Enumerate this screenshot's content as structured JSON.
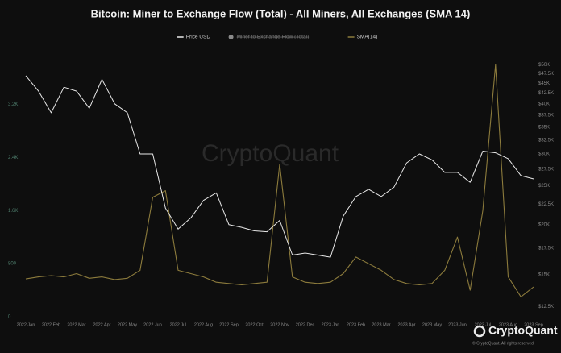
{
  "chart_data": {
    "type": "line",
    "title": "Bitcoin: Miner to Exchange Flow (Total) - All Miners, All Exchanges (SMA 14)",
    "categories": [
      "2022 Jan",
      null,
      "2022 Feb",
      null,
      "2022 Mar",
      null,
      "2022 Apr",
      null,
      "2022 May",
      null,
      "2022 Jun",
      null,
      "2022 Jul",
      null,
      "2022 Aug",
      null,
      "2022 Sep",
      null,
      "2022 Oct",
      null,
      "2022 Nov",
      null,
      "2022 Dec",
      null,
      "2023 Jan",
      null,
      "2023 Feb",
      null,
      "2023 Mar",
      null,
      "2023 Apr",
      null,
      "2023 May",
      null,
      "2023 Jun",
      null,
      "2023 Jul",
      null,
      "2023 Aug",
      null,
      "2023 Sep"
    ],
    "series": [
      {
        "name": "Price USD",
        "color": "#e8e8e8",
        "axis": "y2",
        "values": [
          47000,
          43000,
          38000,
          44000,
          43000,
          39000,
          46000,
          40000,
          38000,
          30000,
          30000,
          22000,
          19500,
          20800,
          23000,
          24000,
          20000,
          19700,
          19300,
          19200,
          20500,
          16800,
          17000,
          16800,
          16600,
          21000,
          23500,
          24500,
          23500,
          24800,
          28500,
          30000,
          29000,
          27000,
          27000,
          25500,
          30500,
          30200,
          29200,
          26500,
          26000
        ]
      },
      {
        "name": "Miner to Exchange Flow (Total)",
        "color": "#8a8a8a",
        "hidden": true
      },
      {
        "name": "SMA(14)",
        "color": "#8c7b3c",
        "values": [
          570,
          600,
          620,
          600,
          650,
          580,
          600,
          560,
          580,
          700,
          1800,
          1900,
          700,
          650,
          600,
          520,
          500,
          480,
          500,
          520,
          2300,
          600,
          520,
          500,
          520,
          650,
          900,
          800,
          700,
          560,
          500,
          480,
          500,
          700,
          1200,
          400,
          1600,
          3800,
          600,
          300,
          450
        ]
      }
    ],
    "ylim": [
      0,
      3900
    ],
    "yticks": [
      0,
      800,
      {
        "value": 1600,
        "label": "1.6K"
      },
      {
        "value": 2400,
        "label": "2.4K"
      },
      {
        "value": 3200,
        "label": "3.2K"
      }
    ],
    "y2lim": [
      11800,
      52000
    ],
    "y2log": true,
    "y2ticks": [
      {
        "value": 12500,
        "label": "$12.5K"
      },
      {
        "value": 15000,
        "label": "$15K"
      },
      {
        "value": 17500,
        "label": "$17.5K"
      },
      {
        "value": 20000,
        "label": "$20K"
      },
      {
        "value": 22500,
        "label": "$22.5K"
      },
      {
        "value": 25000,
        "label": "$25K"
      },
      {
        "value": 27500,
        "label": "$27.5K"
      },
      {
        "value": 30000,
        "label": "$30K"
      },
      {
        "value": 32500,
        "label": "$32.5K"
      },
      {
        "value": 35000,
        "label": "$35K"
      },
      {
        "value": 37500,
        "label": "$37.5K"
      },
      {
        "value": 40000,
        "label": "$40K"
      },
      {
        "value": 42500,
        "label": "$42.5K"
      },
      {
        "value": 45000,
        "label": "$45K"
      },
      {
        "value": 47500,
        "label": "$47.5K"
      },
      {
        "value": 50000,
        "label": "$50K"
      }
    ],
    "watermark": "CryptoQuant",
    "brand": "CryptoQuant",
    "copyright": "© CryptoQuant. All rights reserved"
  }
}
